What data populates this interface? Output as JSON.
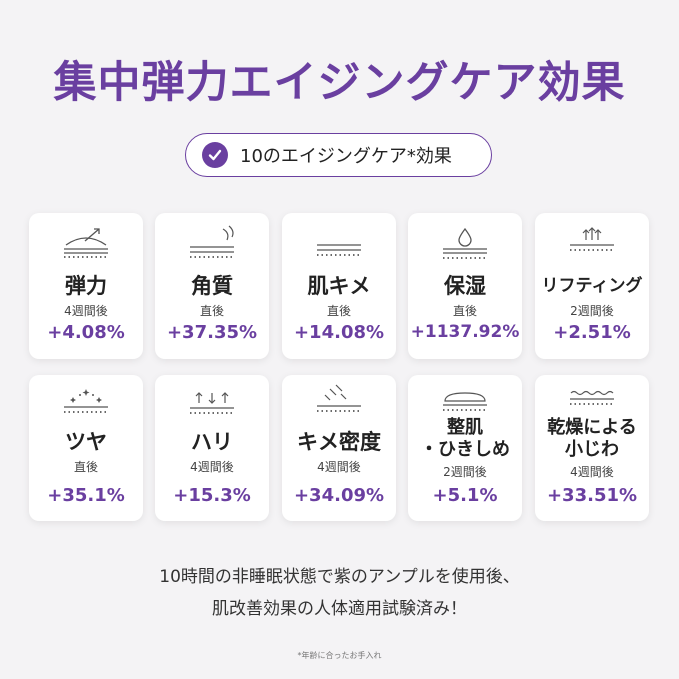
{
  "title": "集中弾力エイジングケア効果",
  "badge": {
    "text": "10のエイジングケア*効果",
    "icon": "check-icon"
  },
  "cards": [
    {
      "label": "弾力",
      "period": "4週間後",
      "value": "+4.08%",
      "icon": "elasticity-icon"
    },
    {
      "label": "角質",
      "period": "直後",
      "value": "+37.35%",
      "icon": "keratin-icon"
    },
    {
      "label": "肌キメ",
      "period": "直後",
      "value": "+14.08%",
      "icon": "texture-icon"
    },
    {
      "label": "保湿",
      "period": "直後",
      "value": "+1137.92%",
      "icon": "moisture-icon"
    },
    {
      "label": "リフティング",
      "period": "2週間後",
      "value": "+2.51%",
      "icon": "lifting-icon"
    },
    {
      "label": "ツヤ",
      "period": "直後",
      "value": "+35.1%",
      "icon": "glow-icon"
    },
    {
      "label": "ハリ",
      "period": "4週間後",
      "value": "+15.3%",
      "icon": "firmness-icon"
    },
    {
      "label": "キメ密度",
      "period": "4週間後",
      "value": "+34.09%",
      "icon": "density-icon"
    },
    {
      "label": "整肌・ひきしめ",
      "label_line1": "整肌",
      "label_line2": "・ひきしめ",
      "period": "2週間後",
      "value": "+5.1%",
      "icon": "tightening-icon"
    },
    {
      "label": "乾燥による小じわ",
      "label_line1": "乾燥による",
      "label_line2": "小じわ",
      "period": "4週間後",
      "value": "+33.51%",
      "icon": "wrinkle-icon"
    }
  ],
  "description": {
    "line1": "10時間の非睡眠状態で紫のアンプルを使用後、",
    "line2": "肌改善効果の人体適用試験済み！"
  },
  "footnote": "*年齢に合ったお手入れ",
  "colors": {
    "accent": "#6a3fa0",
    "background": "#f4f3f5"
  }
}
